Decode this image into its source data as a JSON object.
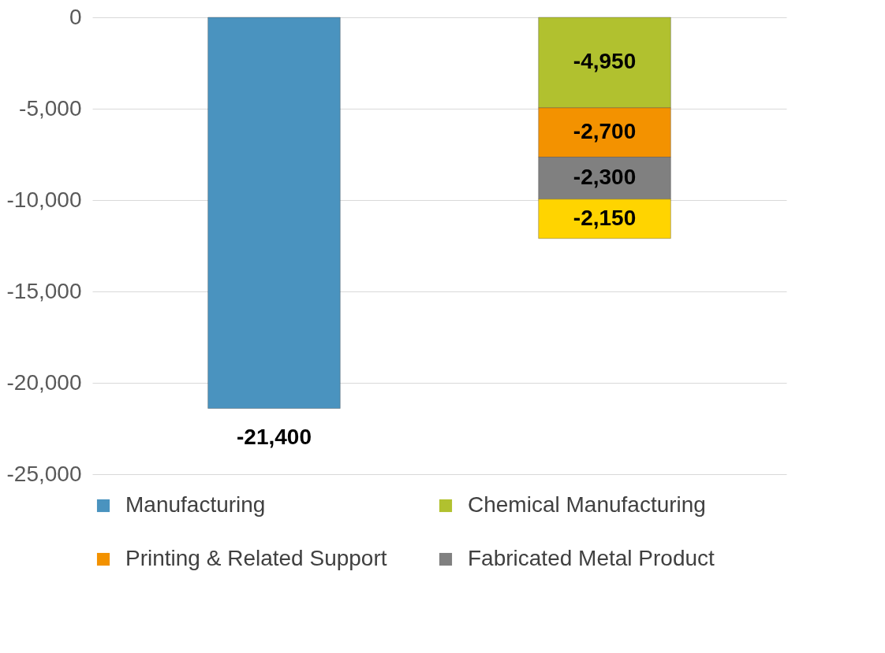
{
  "chart_data": {
    "type": "bar",
    "stacked": true,
    "categories": [
      null,
      null
    ],
    "series": [
      {
        "name": "Manufacturing",
        "color": "#4a93bf",
        "values": [
          -21400,
          null
        ],
        "value_labels": [
          "-21,400",
          null
        ]
      },
      {
        "name": "Chemical Manufacturing",
        "color": "#b1c12f",
        "values": [
          null,
          -4950
        ],
        "value_labels": [
          null,
          "-4,950"
        ]
      },
      {
        "name": "Printing & Related Support",
        "color": "#f39200",
        "values": [
          null,
          -2700
        ],
        "value_labels": [
          null,
          "-2,700"
        ]
      },
      {
        "name": "Fabricated Metal Product",
        "color": "#808080",
        "values": [
          null,
          -2300
        ],
        "value_labels": [
          null,
          "-2,300"
        ]
      },
      {
        "color": "#ffd400",
        "values": [
          null,
          -2150
        ],
        "value_labels": [
          null,
          "-2,150"
        ]
      }
    ],
    "ylim": [
      -25000,
      0
    ],
    "yticks": [
      0,
      {
        "value": -5000,
        "label": "-5,000"
      },
      {
        "value": -10000,
        "label": "-10,000"
      },
      {
        "value": -15000,
        "label": "-15,000"
      },
      {
        "value": -20000,
        "label": "-20,000"
      },
      {
        "value": -25000,
        "label": "-25,000"
      }
    ],
    "grid": "y",
    "legend": "bottom"
  }
}
